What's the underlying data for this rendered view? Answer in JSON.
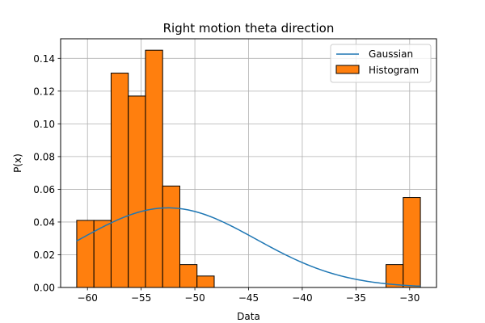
{
  "chart_data": {
    "type": "bar",
    "title": "Right motion theta direction",
    "xlabel": "Data",
    "ylabel": "P(x)",
    "xlim": [
      -62.5,
      -27.5
    ],
    "ylim": [
      0,
      0.152
    ],
    "xticks": [
      -60,
      -55,
      -50,
      -45,
      -40,
      -35,
      -30
    ],
    "yticks": [
      0.0,
      0.02,
      0.04,
      0.06,
      0.08,
      0.1,
      0.12,
      0.14
    ],
    "ytick_labels": [
      "0.00",
      "0.02",
      "0.04",
      "0.06",
      "0.08",
      "0.10",
      "0.12",
      "0.14"
    ],
    "grid": true,
    "legend_position": "top-right",
    "histogram": {
      "name": "Histogram",
      "color": "#ff7f0e",
      "edge_color": "#000000",
      "bin_edges": [
        -61.0,
        -59.4,
        -57.8,
        -56.2,
        -54.6,
        -53.0,
        -51.4,
        -49.8,
        -48.2,
        -46.6,
        -45.0,
        -43.4,
        -41.8,
        -40.2,
        -38.6,
        -37.0,
        -35.4,
        -33.8,
        -32.2,
        -30.6,
        -29.0
      ],
      "densities": [
        0.041,
        0.041,
        0.131,
        0.117,
        0.145,
        0.062,
        0.014,
        0.007,
        0,
        0,
        0,
        0,
        0,
        0,
        0,
        0,
        0,
        0,
        0.014,
        0.055
      ]
    },
    "gaussian": {
      "name": "Gaussian",
      "color": "#1f77b4",
      "mean": -52.5,
      "std": 8.2,
      "x_range": [
        -61.0,
        -29.0
      ]
    }
  }
}
